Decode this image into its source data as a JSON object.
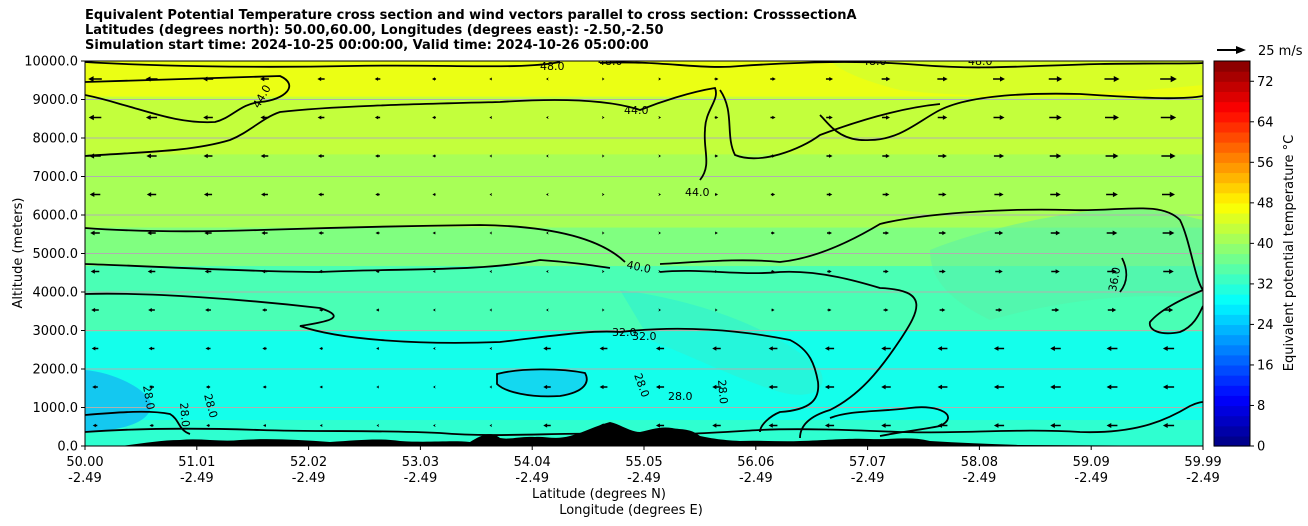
{
  "chart_data": {
    "type": "contourf",
    "title_lines": [
      "Equivalent Potential Temperature cross section and wind vectors parallel to cross section: CrosssectionA",
      "Latitudes (degrees north): 50.00,60.00, Longitudes (degrees east): -2.50,-2.50",
      "Simulation start time: 2024-10-25 00:00:00, Valid time: 2024-10-26 05:00:00"
    ],
    "ylabel": "Altitude (meters)",
    "xlabel_lat": "Latitude (degrees N)",
    "xlabel_lon": "Longitude (degrees E)",
    "ylim": [
      0,
      10000
    ],
    "y_ticks": [
      "0.0",
      "1000.0",
      "2000.0",
      "3000.0",
      "4000.0",
      "5000.0",
      "6000.0",
      "7000.0",
      "8000.0",
      "9000.0",
      "10000.0"
    ],
    "x_ticks": [
      {
        "lat": "50.00",
        "lon": "-2.49"
      },
      {
        "lat": "51.01",
        "lon": "-2.49"
      },
      {
        "lat": "52.02",
        "lon": "-2.49"
      },
      {
        "lat": "53.03",
        "lon": "-2.49"
      },
      {
        "lat": "54.04",
        "lon": "-2.49"
      },
      {
        "lat": "55.05",
        "lon": "-2.49"
      },
      {
        "lat": "56.06",
        "lon": "-2.49"
      },
      {
        "lat": "57.07",
        "lon": "-2.49"
      },
      {
        "lat": "58.08",
        "lon": "-2.49"
      },
      {
        "lat": "59.09",
        "lon": "-2.49"
      },
      {
        "lat": "59.99",
        "lon": "-2.49"
      }
    ],
    "theta_e_bands_degC": [
      {
        "zmin": 0,
        "zmax": 700,
        "value": 32
      },
      {
        "zmin": 700,
        "zmax": 3000,
        "value": 30
      },
      {
        "zmin": 3000,
        "zmax": 4700,
        "value": 34
      },
      {
        "zmin": 4700,
        "zmax": 5700,
        "value": 38
      },
      {
        "zmin": 5700,
        "zmax": 7600,
        "value": 41
      },
      {
        "zmin": 7600,
        "zmax": 9100,
        "value": 43
      },
      {
        "zmin": 9100,
        "zmax": 10000,
        "value": 46
      }
    ],
    "contour_labels": [
      "28.0",
      "32.0",
      "36.0",
      "40.0",
      "44.0",
      "48.0"
    ],
    "colorbar": {
      "label": "Equivalent potential temperature °C",
      "min": 0,
      "max": 76,
      "ticks": [
        "0",
        "8",
        "16",
        "24",
        "32",
        "40",
        "48",
        "56",
        "64",
        "72"
      ]
    },
    "quiver_key": {
      "label": "25 m/s",
      "speed": 25
    }
  }
}
